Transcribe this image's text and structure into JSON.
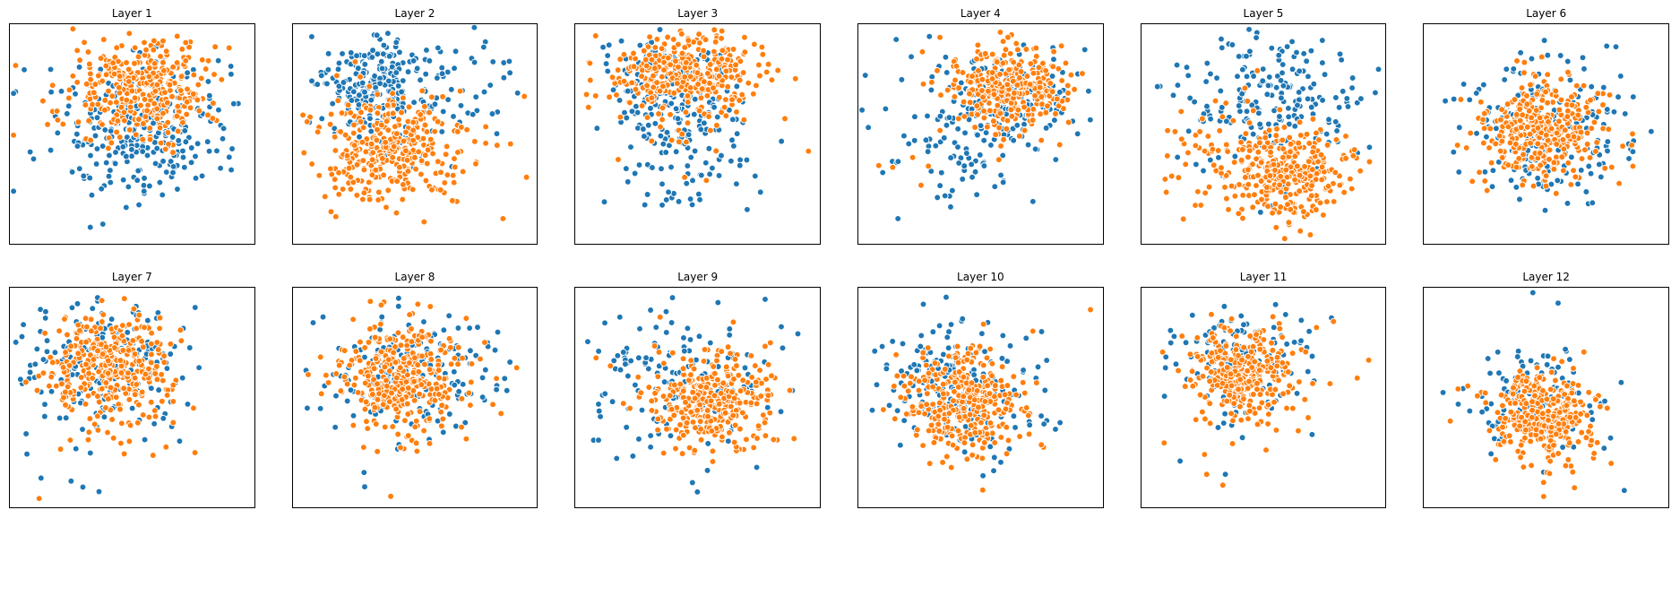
{
  "figure": {
    "background": "#ffffff",
    "series_colors": {
      "blue": "#1f77b4",
      "orange": "#ff7f0e"
    },
    "marker": {
      "radius": 1.25,
      "edge_color": "#ffffff",
      "edge_width": 0.33
    }
  },
  "chart_data": {
    "type": "scatter",
    "title": "",
    "layout": {
      "rows": 2,
      "cols": 6,
      "legend": "none",
      "axes_ticks": "none",
      "grid": false
    },
    "panels": [
      {
        "title": "Layer 1",
        "clusters": [
          {
            "series": "blue",
            "n": 60,
            "cx": 0.45,
            "cy": 0.45,
            "sx": 0.28,
            "sy": 0.22
          },
          {
            "series": "blue",
            "n": 220,
            "cx": 0.56,
            "cy": 0.48,
            "sx": 0.16,
            "sy": 0.15
          },
          {
            "series": "orange",
            "n": 30,
            "cx": 0.35,
            "cy": 0.3,
            "sx": 0.22,
            "sy": 0.18
          },
          {
            "series": "orange",
            "n": 320,
            "cx": 0.55,
            "cy": 0.3,
            "sx": 0.13,
            "sy": 0.11
          }
        ]
      },
      {
        "title": "Layer 2",
        "clusters": [
          {
            "series": "blue",
            "n": 200,
            "cx": 0.33,
            "cy": 0.28,
            "sx": 0.11,
            "sy": 0.11
          },
          {
            "series": "blue",
            "n": 80,
            "cx": 0.6,
            "cy": 0.33,
            "sx": 0.22,
            "sy": 0.18
          },
          {
            "series": "orange",
            "n": 320,
            "cx": 0.38,
            "cy": 0.58,
            "sx": 0.13,
            "sy": 0.12
          },
          {
            "series": "orange",
            "n": 30,
            "cx": 0.6,
            "cy": 0.55,
            "sx": 0.2,
            "sy": 0.15
          }
        ]
      },
      {
        "title": "Layer 3",
        "clusters": [
          {
            "series": "blue",
            "n": 140,
            "cx": 0.4,
            "cy": 0.28,
            "sx": 0.14,
            "sy": 0.11
          },
          {
            "series": "blue",
            "n": 110,
            "cx": 0.45,
            "cy": 0.55,
            "sx": 0.16,
            "sy": 0.16
          },
          {
            "series": "orange",
            "n": 330,
            "cx": 0.45,
            "cy": 0.22,
            "sx": 0.15,
            "sy": 0.09
          },
          {
            "series": "orange",
            "n": 20,
            "cx": 0.5,
            "cy": 0.5,
            "sx": 0.2,
            "sy": 0.15
          }
        ]
      },
      {
        "title": "Layer 4",
        "clusters": [
          {
            "series": "blue",
            "n": 150,
            "cx": 0.6,
            "cy": 0.36,
            "sx": 0.14,
            "sy": 0.12
          },
          {
            "series": "blue",
            "n": 80,
            "cx": 0.45,
            "cy": 0.55,
            "sx": 0.18,
            "sy": 0.14
          },
          {
            "series": "blue",
            "n": 10,
            "cx": 0.3,
            "cy": 0.3,
            "sx": 0.2,
            "sy": 0.15
          },
          {
            "series": "orange",
            "n": 310,
            "cx": 0.62,
            "cy": 0.28,
            "sx": 0.12,
            "sy": 0.1
          },
          {
            "series": "orange",
            "n": 15,
            "cx": 0.45,
            "cy": 0.45,
            "sx": 0.2,
            "sy": 0.15
          }
        ]
      },
      {
        "title": "Layer 5",
        "clusters": [
          {
            "series": "blue",
            "n": 160,
            "cx": 0.55,
            "cy": 0.38,
            "sx": 0.18,
            "sy": 0.15
          },
          {
            "series": "blue",
            "n": 40,
            "cx": 0.45,
            "cy": 0.2,
            "sx": 0.22,
            "sy": 0.08
          },
          {
            "series": "orange",
            "n": 320,
            "cx": 0.6,
            "cy": 0.68,
            "sx": 0.13,
            "sy": 0.1
          },
          {
            "series": "orange",
            "n": 45,
            "cx": 0.3,
            "cy": 0.55,
            "sx": 0.15,
            "sy": 0.15
          }
        ]
      },
      {
        "title": "Layer 6",
        "clusters": [
          {
            "series": "blue",
            "n": 190,
            "cx": 0.5,
            "cy": 0.48,
            "sx": 0.19,
            "sy": 0.16
          },
          {
            "series": "blue",
            "n": 10,
            "cx": 0.6,
            "cy": 0.75,
            "sx": 0.25,
            "sy": 0.1
          },
          {
            "series": "orange",
            "n": 330,
            "cx": 0.5,
            "cy": 0.48,
            "sx": 0.12,
            "sy": 0.11
          },
          {
            "series": "orange",
            "n": 10,
            "cx": 0.3,
            "cy": 0.6,
            "sx": 0.2,
            "sy": 0.12
          }
        ]
      },
      {
        "title": "Layer 7",
        "clusters": [
          {
            "series": "blue",
            "n": 200,
            "cx": 0.38,
            "cy": 0.32,
            "sx": 0.16,
            "sy": 0.14
          },
          {
            "series": "blue",
            "n": 15,
            "cx": 0.45,
            "cy": 0.7,
            "sx": 0.2,
            "sy": 0.15
          },
          {
            "series": "blue",
            "n": 3,
            "cx": 0.25,
            "cy": 0.9,
            "sx": 0.05,
            "sy": 0.05
          },
          {
            "series": "orange",
            "n": 320,
            "cx": 0.4,
            "cy": 0.35,
            "sx": 0.12,
            "sy": 0.11
          },
          {
            "series": "orange",
            "n": 40,
            "cx": 0.45,
            "cy": 0.58,
            "sx": 0.14,
            "sy": 0.12
          },
          {
            "series": "orange",
            "n": 1,
            "cx": 0.12,
            "cy": 0.96,
            "sx": 0.0,
            "sy": 0.0
          }
        ]
      },
      {
        "title": "Layer 8",
        "clusters": [
          {
            "series": "blue",
            "n": 180,
            "cx": 0.47,
            "cy": 0.38,
            "sx": 0.18,
            "sy": 0.15
          },
          {
            "series": "blue",
            "n": 2,
            "cx": 0.3,
            "cy": 0.85,
            "sx": 0.03,
            "sy": 0.05
          },
          {
            "series": "orange",
            "n": 330,
            "cx": 0.45,
            "cy": 0.4,
            "sx": 0.13,
            "sy": 0.12
          },
          {
            "series": "orange",
            "n": 15,
            "cx": 0.5,
            "cy": 0.62,
            "sx": 0.15,
            "sy": 0.08
          },
          {
            "series": "orange",
            "n": 1,
            "cx": 0.4,
            "cy": 0.95,
            "sx": 0.0,
            "sy": 0.0
          }
        ]
      },
      {
        "title": "Layer 9",
        "clusters": [
          {
            "series": "blue",
            "n": 120,
            "cx": 0.45,
            "cy": 0.45,
            "sx": 0.2,
            "sy": 0.18
          },
          {
            "series": "blue",
            "n": 30,
            "cx": 0.3,
            "cy": 0.3,
            "sx": 0.18,
            "sy": 0.12
          },
          {
            "series": "blue",
            "n": 1,
            "cx": 0.5,
            "cy": 0.93,
            "sx": 0.0,
            "sy": 0.0
          },
          {
            "series": "orange",
            "n": 320,
            "cx": 0.55,
            "cy": 0.52,
            "sx": 0.12,
            "sy": 0.11
          },
          {
            "series": "orange",
            "n": 15,
            "cx": 0.4,
            "cy": 0.35,
            "sx": 0.18,
            "sy": 0.12
          }
        ]
      },
      {
        "title": "Layer 10",
        "clusters": [
          {
            "series": "blue",
            "n": 150,
            "cx": 0.35,
            "cy": 0.42,
            "sx": 0.12,
            "sy": 0.13
          },
          {
            "series": "blue",
            "n": 50,
            "cx": 0.55,
            "cy": 0.55,
            "sx": 0.15,
            "sy": 0.15
          },
          {
            "series": "blue",
            "n": 1,
            "cx": 0.75,
            "cy": 0.2,
            "sx": 0.0,
            "sy": 0.0
          },
          {
            "series": "orange",
            "n": 310,
            "cx": 0.43,
            "cy": 0.52,
            "sx": 0.12,
            "sy": 0.12
          },
          {
            "series": "orange",
            "n": 15,
            "cx": 0.55,
            "cy": 0.65,
            "sx": 0.12,
            "sy": 0.1
          },
          {
            "series": "orange",
            "n": 1,
            "cx": 0.95,
            "cy": 0.1,
            "sx": 0.0,
            "sy": 0.0
          }
        ]
      },
      {
        "title": "Layer 11",
        "clusters": [
          {
            "series": "blue",
            "n": 140,
            "cx": 0.4,
            "cy": 0.32,
            "sx": 0.15,
            "sy": 0.12
          },
          {
            "series": "blue",
            "n": 4,
            "cx": 0.45,
            "cy": 0.75,
            "sx": 0.15,
            "sy": 0.1
          },
          {
            "series": "orange",
            "n": 300,
            "cx": 0.42,
            "cy": 0.38,
            "sx": 0.11,
            "sy": 0.1
          },
          {
            "series": "orange",
            "n": 20,
            "cx": 0.5,
            "cy": 0.55,
            "sx": 0.15,
            "sy": 0.1
          },
          {
            "series": "orange",
            "n": 1,
            "cx": 0.93,
            "cy": 0.33,
            "sx": 0.0,
            "sy": 0.0
          },
          {
            "series": "orange",
            "n": 2,
            "cx": 0.35,
            "cy": 0.9,
            "sx": 0.05,
            "sy": 0.03
          }
        ]
      },
      {
        "title": "Layer 12",
        "clusters": [
          {
            "series": "blue",
            "n": 110,
            "cx": 0.47,
            "cy": 0.52,
            "sx": 0.14,
            "sy": 0.13
          },
          {
            "series": "blue",
            "n": 6,
            "cx": 0.3,
            "cy": 0.4,
            "sx": 0.15,
            "sy": 0.15
          },
          {
            "series": "blue",
            "n": 1,
            "cx": 0.55,
            "cy": 0.07,
            "sx": 0.0,
            "sy": 0.0
          },
          {
            "series": "orange",
            "n": 320,
            "cx": 0.48,
            "cy": 0.58,
            "sx": 0.1,
            "sy": 0.1
          },
          {
            "series": "orange",
            "n": 15,
            "cx": 0.55,
            "cy": 0.75,
            "sx": 0.12,
            "sy": 0.08
          },
          {
            "series": "orange",
            "n": 4,
            "cx": 0.25,
            "cy": 0.6,
            "sx": 0.08,
            "sy": 0.1
          }
        ]
      }
    ]
  }
}
